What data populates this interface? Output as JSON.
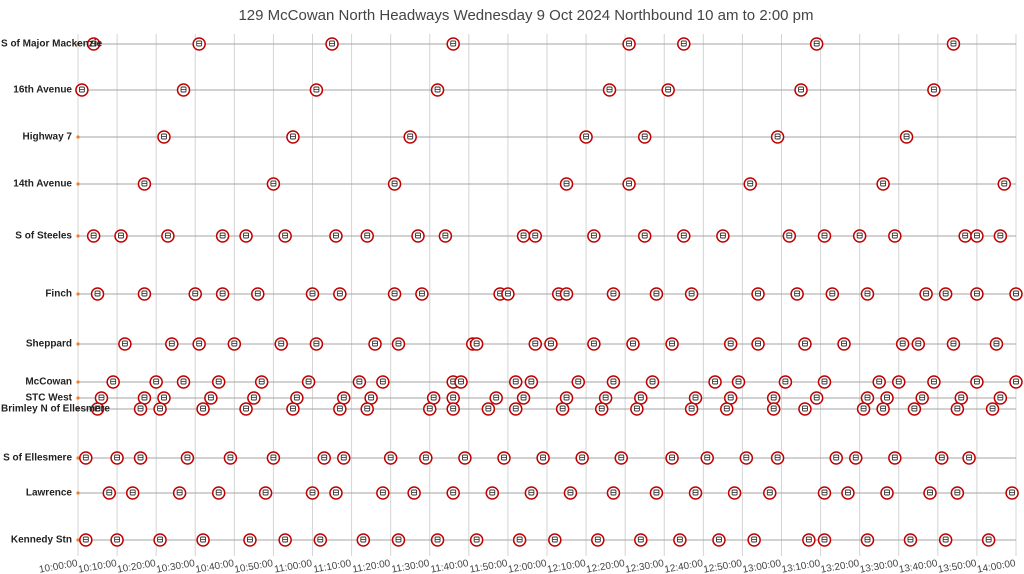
{
  "chart_data": {
    "type": "timeline",
    "title": "129 McCowan North Headways Wednesday 9 Oct 2024 Northbound 10 am to 2:00 pm",
    "marker_color": "#c00000",
    "xlim": [
      "10:00:00",
      "14:00:00"
    ],
    "xticks": [
      "10:00:00",
      "10:10:00",
      "10:20:00",
      "10:30:00",
      "10:40:00",
      "10:50:00",
      "11:00:00",
      "11:10:00",
      "11:20:00",
      "11:30:00",
      "11:40:00",
      "11:50:00",
      "12:00:00",
      "12:10:00",
      "12:20:00",
      "12:30:00",
      "12:40:00",
      "12:50:00",
      "13:00:00",
      "13:10:00",
      "13:20:00",
      "13:30:00",
      "13:40:00",
      "13:50:00",
      "14:00:00"
    ],
    "grid": true,
    "series": [
      {
        "name": "S of Major Mackenzie",
        "x": [
          "10:04:00",
          "10:31:00",
          "11:05:00",
          "11:36:00",
          "12:21:00",
          "12:35:00",
          "13:09:00",
          "13:44:00"
        ]
      },
      {
        "name": "16th Avenue",
        "x": [
          "10:01:00",
          "10:27:00",
          "11:01:00",
          "11:32:00",
          "12:16:00",
          "12:31:00",
          "13:05:00",
          "13:39:00"
        ]
      },
      {
        "name": "Highway 7",
        "x": [
          "10:22:00",
          "10:55:00",
          "11:25:00",
          "12:10:00",
          "12:25:00",
          "12:59:00",
          "13:32:00"
        ]
      },
      {
        "name": "14th Avenue",
        "x": [
          "10:17:00",
          "10:50:00",
          "11:21:00",
          "12:05:00",
          "12:21:00",
          "12:52:00",
          "13:26:00",
          "13:57:00"
        ]
      },
      {
        "name": "S of Steeles",
        "x": [
          "10:04:00",
          "10:11:00",
          "10:23:00",
          "10:37:00",
          "10:43:00",
          "10:53:00",
          "11:06:00",
          "11:14:00",
          "11:27:00",
          "11:34:00",
          "11:54:00",
          "11:57:00",
          "12:12:00",
          "12:25:00",
          "12:35:00",
          "12:45:00",
          "13:02:00",
          "13:11:00",
          "13:20:00",
          "13:29:00",
          "13:47:00",
          "13:50:00",
          "13:56:00"
        ]
      },
      {
        "name": "Finch",
        "x": [
          "10:05:00",
          "10:17:00",
          "10:30:00",
          "10:37:00",
          "10:46:00",
          "11:00:00",
          "11:07:00",
          "11:21:00",
          "11:28:00",
          "11:48:00",
          "11:50:00",
          "12:03:00",
          "12:05:00",
          "12:17:00",
          "12:28:00",
          "12:37:00",
          "12:54:00",
          "13:04:00",
          "13:13:00",
          "13:22:00",
          "13:37:00",
          "13:42:00",
          "13:50:00",
          "14:00:00"
        ]
      },
      {
        "name": "Sheppard",
        "x": [
          "10:12:00",
          "10:24:00",
          "10:31:00",
          "10:40:00",
          "10:52:00",
          "11:01:00",
          "11:16:00",
          "11:22:00",
          "11:41:00",
          "11:42:00",
          "11:57:00",
          "12:01:00",
          "12:12:00",
          "12:22:00",
          "12:32:00",
          "12:47:00",
          "12:54:00",
          "13:06:00",
          "13:16:00",
          "13:31:00",
          "13:35:00",
          "13:44:00",
          "13:55:00"
        ]
      },
      {
        "name": "McCowan",
        "x": [
          "10:09:00",
          "10:20:00",
          "10:27:00",
          "10:36:00",
          "10:47:00",
          "10:59:00",
          "11:12:00",
          "11:18:00",
          "11:36:00",
          "11:38:00",
          "11:52:00",
          "11:56:00",
          "12:08:00",
          "12:17:00",
          "12:27:00",
          "12:43:00",
          "12:49:00",
          "13:01:00",
          "13:11:00",
          "13:25:00",
          "13:30:00",
          "13:39:00",
          "13:50:00",
          "14:00:00"
        ]
      },
      {
        "name": "STC West",
        "x": [
          "10:06:00",
          "10:17:00",
          "10:22:00",
          "10:34:00",
          "10:45:00",
          "10:56:00",
          "11:08:00",
          "11:15:00",
          "11:31:00",
          "11:36:00",
          "11:47:00",
          "11:54:00",
          "12:05:00",
          "12:15:00",
          "12:24:00",
          "12:38:00",
          "12:47:00",
          "12:58:00",
          "13:09:00",
          "13:22:00",
          "13:27:00",
          "13:36:00",
          "13:46:00",
          "13:56:00"
        ]
      },
      {
        "name": "Brimley N of Ellesmere",
        "x": [
          "10:05:00",
          "10:16:00",
          "10:21:00",
          "10:32:00",
          "10:43:00",
          "10:55:00",
          "11:07:00",
          "11:14:00",
          "11:30:00",
          "11:36:00",
          "11:45:00",
          "11:52:00",
          "12:04:00",
          "12:14:00",
          "12:23:00",
          "12:37:00",
          "12:46:00",
          "12:58:00",
          "13:06:00",
          "13:21:00",
          "13:26:00",
          "13:34:00",
          "13:45:00",
          "13:54:00"
        ]
      },
      {
        "name": "S of Ellesmere",
        "x": [
          "10:02:00",
          "10:10:00",
          "10:16:00",
          "10:28:00",
          "10:39:00",
          "10:50:00",
          "11:03:00",
          "11:08:00",
          "11:20:00",
          "11:29:00",
          "11:39:00",
          "11:49:00",
          "11:59:00",
          "12:09:00",
          "12:19:00",
          "12:32:00",
          "12:41:00",
          "12:51:00",
          "12:59:00",
          "13:14:00",
          "13:19:00",
          "13:29:00",
          "13:41:00",
          "13:48:00"
        ]
      },
      {
        "name": "Lawrence",
        "x": [
          "10:08:00",
          "10:14:00",
          "10:26:00",
          "10:36:00",
          "10:48:00",
          "11:00:00",
          "11:06:00",
          "11:18:00",
          "11:26:00",
          "11:36:00",
          "11:46:00",
          "11:56:00",
          "12:06:00",
          "12:17:00",
          "12:28:00",
          "12:38:00",
          "12:48:00",
          "12:57:00",
          "13:11:00",
          "13:17:00",
          "13:27:00",
          "13:38:00",
          "13:45:00",
          "13:59:00"
        ]
      },
      {
        "name": "Kennedy Stn",
        "x": [
          "10:02:00",
          "10:10:00",
          "10:21:00",
          "10:32:00",
          "10:44:00",
          "10:53:00",
          "11:02:00",
          "11:13:00",
          "11:22:00",
          "11:32:00",
          "11:42:00",
          "11:53:00",
          "12:02:00",
          "12:13:00",
          "12:24:00",
          "12:34:00",
          "12:44:00",
          "12:53:00",
          "13:07:00",
          "13:11:00",
          "13:22:00",
          "13:33:00",
          "13:42:00",
          "13:53:00"
        ]
      }
    ]
  }
}
